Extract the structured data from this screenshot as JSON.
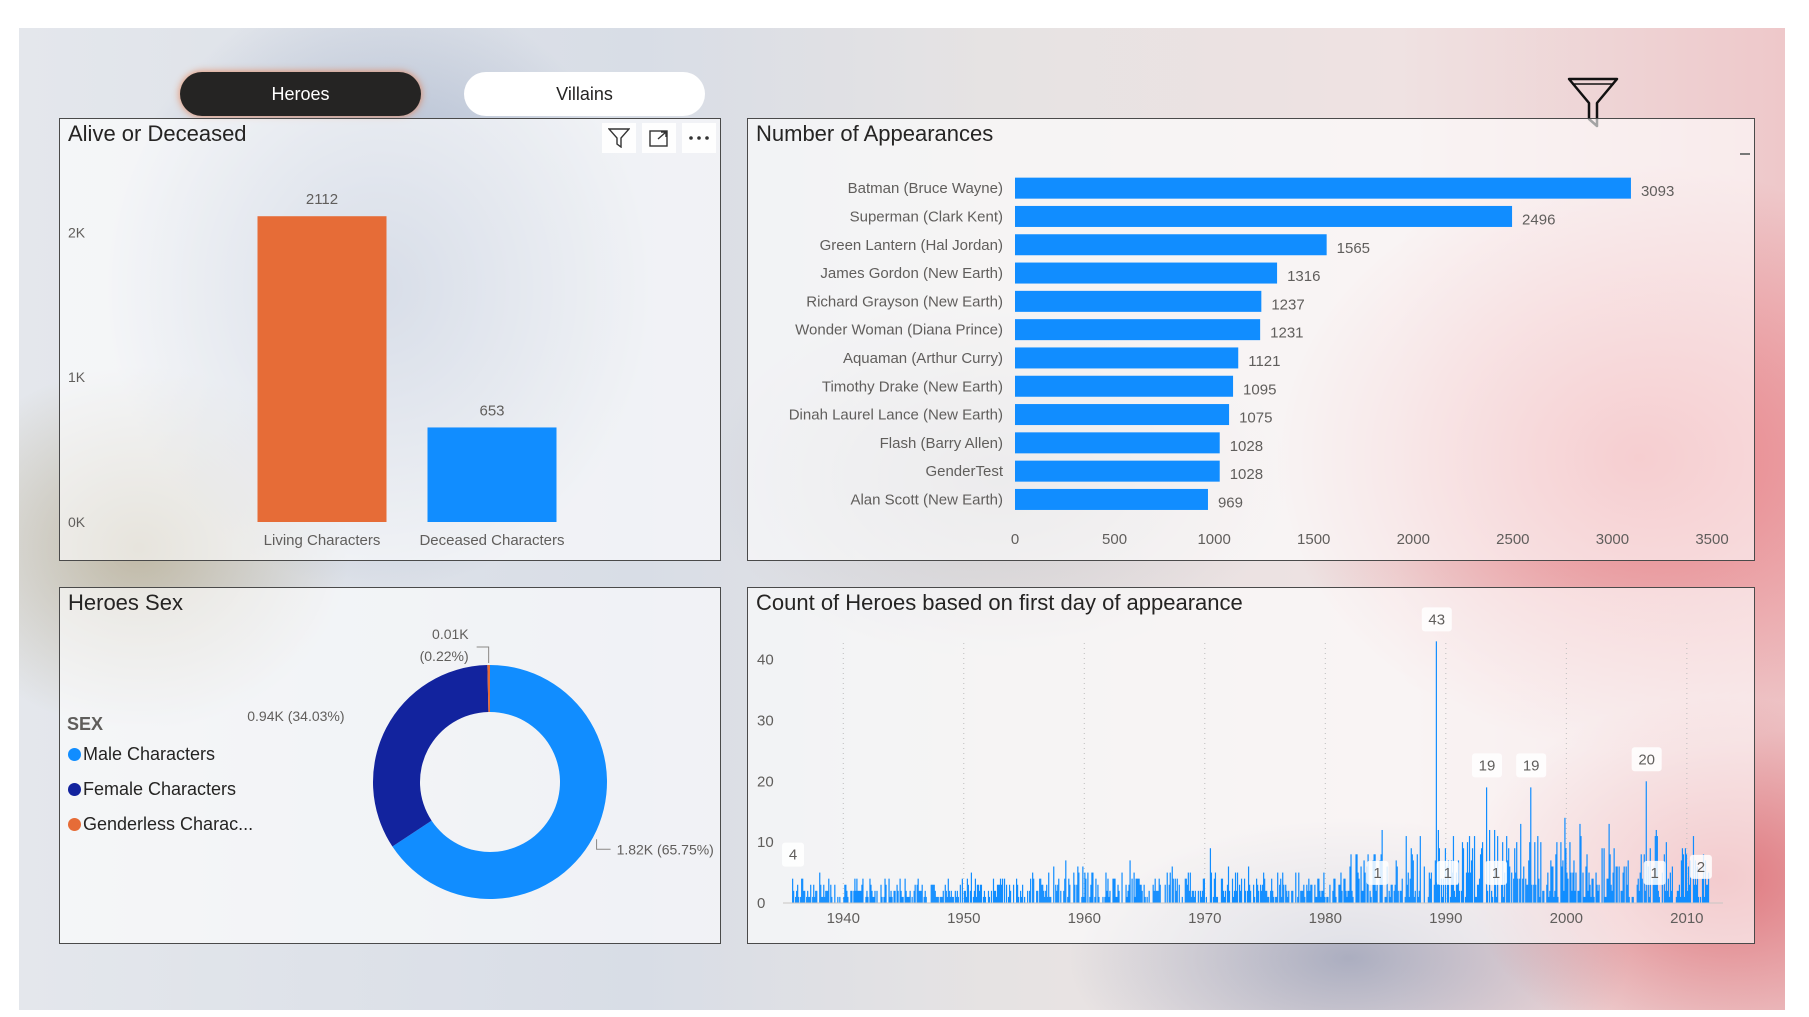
{
  "tabs": [
    {
      "label": "Heroes",
      "active": true
    },
    {
      "label": "Villains",
      "active": false
    }
  ],
  "filter_icon": "funnel-icon",
  "colors": {
    "orange": "#E66C37",
    "blue": "#118DFF",
    "navy": "#12239E",
    "dark": "#252423"
  },
  "alive_panel": {
    "title": "Alive or Deceased",
    "header_icons": [
      "filter-icon",
      "focus-mode-icon",
      "more-options-icon"
    ]
  },
  "appearances_panel": {
    "title": "Number of Appearances"
  },
  "sex_panel": {
    "title": "Heroes Sex"
  },
  "timeline_panel": {
    "title": "Count of Heroes based on first day of appearance"
  },
  "chart_data": [
    {
      "id": "alive",
      "type": "bar",
      "title": "Alive or Deceased",
      "categories": [
        "Living Characters",
        "Deceased Characters"
      ],
      "values": [
        2112,
        653
      ],
      "data_labels": [
        "2112",
        "653"
      ],
      "colors": [
        "#E66C37",
        "#118DFF"
      ],
      "ylim": [
        0,
        2300
      ],
      "yticks": [
        0,
        1000,
        2000
      ],
      "ytick_labels": [
        "0K",
        "1K",
        "2K"
      ],
      "grid": false
    },
    {
      "id": "appearances",
      "type": "bar",
      "orientation": "horizontal",
      "title": "Number of Appearances",
      "categories": [
        "Batman (Bruce Wayne)",
        "Superman (Clark Kent)",
        "Green Lantern (Hal Jordan)",
        "James Gordon (New Earth)",
        "Richard Grayson (New Earth)",
        "Wonder Woman (Diana Prince)",
        "Aquaman (Arthur Curry)",
        "Timothy Drake (New Earth)",
        "Dinah Laurel Lance (New Earth)",
        "Flash (Barry Allen)",
        "GenderTest",
        "Alan Scott (New Earth)"
      ],
      "values": [
        3093,
        2496,
        1565,
        1316,
        1237,
        1231,
        1121,
        1095,
        1075,
        1028,
        1028,
        969
      ],
      "color": "#118DFF",
      "xlim": [
        0,
        3500
      ],
      "xticks": [
        0,
        500,
        1000,
        1500,
        2000,
        2500,
        3000,
        3500
      ],
      "grid": false
    },
    {
      "id": "sex",
      "type": "pie",
      "donut": true,
      "title": "Heroes Sex",
      "legend_title": "SEX",
      "legend_position": "left",
      "categories": [
        "Male Characters",
        "Female Characters",
        "Genderless Characters"
      ],
      "legend_labels": [
        "Male Characters",
        "Female Characters",
        "Genderless Charac..."
      ],
      "values": [
        1820,
        940,
        10
      ],
      "percents": [
        65.75,
        34.03,
        0.22
      ],
      "data_labels": [
        "1.82K (65.75%)",
        "0.94K (34.03%)",
        "0.01K (0.22%)"
      ],
      "colors": [
        "#118DFF",
        "#12239E",
        "#E66C37"
      ]
    },
    {
      "id": "timeline",
      "type": "bar",
      "title": "Count of Heroes based on first day of appearance",
      "xlim": [
        "1935",
        "2013"
      ],
      "xticks": [
        "1940",
        "1950",
        "1960",
        "1970",
        "1980",
        "1990",
        "2000",
        "2010"
      ],
      "ylim": [
        0,
        47
      ],
      "yticks": [
        0,
        10,
        20,
        30,
        40
      ],
      "grid": "vertical dotted",
      "color": "#118DFF",
      "peaks": [
        {
          "x": "1935-10",
          "y": 4
        },
        {
          "x": "1989-03",
          "y": 43
        },
        {
          "x": "1993-05",
          "y": 19
        },
        {
          "x": "1997-01",
          "y": 19
        },
        {
          "x": "2006-08",
          "y": 20
        }
      ],
      "annotations": [
        {
          "x": "1935-10",
          "y": 4,
          "label": "4"
        },
        {
          "x": "1989-03",
          "y": 43,
          "label": "43"
        },
        {
          "x": "1993-05",
          "y": 19,
          "label": "19"
        },
        {
          "x": "1997-01",
          "y": 19,
          "label": "19"
        },
        {
          "x": "2006-08",
          "y": 20,
          "label": "20"
        },
        {
          "x": "1984-04",
          "y": 1,
          "label": "1"
        },
        {
          "x": "1990-02",
          "y": 1,
          "label": "1"
        },
        {
          "x": "1994-02",
          "y": 1,
          "label": "1"
        },
        {
          "x": "2007-04",
          "y": 1,
          "label": "1"
        },
        {
          "x": "2011-02",
          "y": 2,
          "label": "2"
        }
      ]
    }
  ]
}
